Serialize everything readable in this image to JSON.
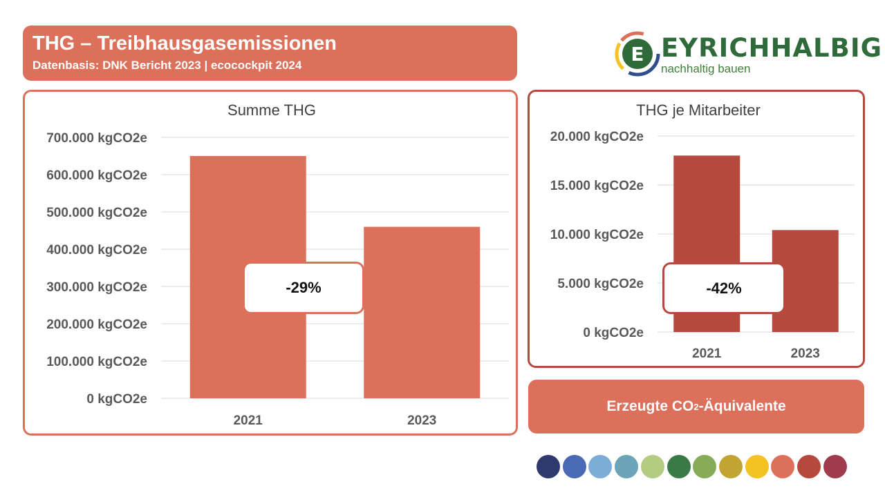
{
  "header": {
    "title": "THG – Treibhausgasemissionen",
    "subtitle": "Datenbasis: DNK Bericht 2023 | ecocockpit 2024"
  },
  "logo": {
    "wordmark": "EYRICHHALBIG",
    "tagline": "nachhaltig bauen",
    "icon_letter": "E"
  },
  "chart_data": [
    {
      "type": "bar",
      "title": "Summe THG",
      "categories": [
        "2021",
        "2023"
      ],
      "values": [
        650000,
        460000
      ],
      "ylim": [
        0,
        700000
      ],
      "yticks": [
        0,
        100000,
        200000,
        300000,
        400000,
        500000,
        600000,
        700000
      ],
      "ytick_labels": [
        "0 kgCO2e",
        "100.000 kgCO2e",
        "200.000 kgCO2e",
        "300.000 kgCO2e",
        "400.000 kgCO2e",
        "500.000 kgCO2e",
        "600.000 kgCO2e",
        "700.000 kgCO2e"
      ],
      "bar_color": "#dd705a",
      "grid": true,
      "annotation": "-29%"
    },
    {
      "type": "bar",
      "title": "THG je Mitarbeiter",
      "categories": [
        "2021",
        "2023"
      ],
      "values": [
        18000,
        10400
      ],
      "ylim": [
        0,
        20000
      ],
      "yticks": [
        0,
        5000,
        10000,
        15000,
        20000
      ],
      "ytick_labels": [
        "0 kgCO2e",
        "5.000 kgCO2e",
        "10.000 kgCO2e",
        "15.000 kgCO2e",
        "20.000 kgCO2e"
      ],
      "bar_color": "#b5493e",
      "grid": true,
      "annotation": "-42%"
    }
  ],
  "co2_button": {
    "label_pre": "Erzeugte CO",
    "label_sub": "2",
    "label_post": "-Äquivalente"
  },
  "palette": [
    "#2e3a6e",
    "#4a6ab5",
    "#7eacd8",
    "#6aa4b6",
    "#b4cc80",
    "#3a7a46",
    "#86ac5a",
    "#c2a434",
    "#f4c323",
    "#dd705a",
    "#b5493e",
    "#a03b4e"
  ],
  "colors": {
    "accent": "#dd705a",
    "accent_dark": "#b5493e",
    "grid": "#d9d9d9",
    "axis_text": "#595959"
  }
}
